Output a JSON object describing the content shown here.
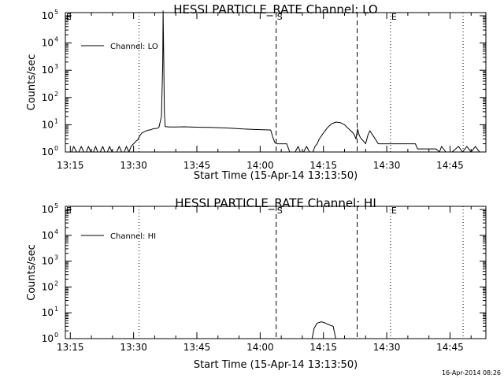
{
  "footer_timestamp": "16-Apr-2014 08:26",
  "chart_data": [
    {
      "type": "line",
      "title": "HESSI PARTICLE_RATE Channel: LO",
      "xlabel": "Start Time (15-Apr-14 13:13:50)",
      "ylabel": "Counts/sec",
      "y_scale": "log",
      "ylim": [
        1,
        100000
      ],
      "y_ticks": [
        {
          "base": "10",
          "exp": "0"
        },
        {
          "base": "10",
          "exp": "1"
        },
        {
          "base": "10",
          "exp": "2"
        },
        {
          "base": "10",
          "exp": "3"
        },
        {
          "base": "10",
          "exp": "4"
        },
        {
          "base": "10",
          "exp": "5"
        }
      ],
      "x_ticks": [
        "13:15",
        "13:30",
        "13:45",
        "14:00",
        "14:15",
        "14:30",
        "14:45"
      ],
      "xlim_minutes": [
        793.83,
        893.5
      ],
      "legend": {
        "label": "Channel: LO",
        "position": "top-left"
      },
      "markers": [
        {
          "label": "E",
          "style": "dotted",
          "minutes": 793.83
        },
        {
          "label": "",
          "style": "dotted",
          "minutes": 811.3
        },
        {
          "label": "S",
          "style": "dashed",
          "minutes": 843.8
        },
        {
          "label": "",
          "style": "dashed",
          "minutes": 863.0
        },
        {
          "label": "E",
          "style": "dotted",
          "minutes": 870.9
        },
        {
          "label": "",
          "style": "dotted",
          "minutes": 888.1
        }
      ],
      "series": [
        {
          "name": "Channel: LO",
          "minutes": [
            794,
            795.3,
            795.8,
            796.5,
            797,
            797.6,
            798.2,
            798.8,
            799.3,
            799.9,
            800.5,
            801,
            801.5,
            802.1,
            802.7,
            803.2,
            803.8,
            804.3,
            804.9,
            805.5,
            806,
            806.6,
            807.2,
            807.8,
            808.3,
            808.9,
            809.4,
            810,
            810.6,
            811,
            811.5,
            812,
            812.5,
            813,
            813.6,
            814,
            814.5,
            815,
            815.5,
            816,
            816.6,
            816.9,
            817,
            817.15,
            817.3,
            817.5,
            818,
            818.5,
            820,
            822,
            824,
            826,
            828,
            830,
            832,
            834,
            836,
            838,
            840,
            841.5,
            842.5,
            843,
            843.5,
            844,
            845,
            846.3,
            847,
            847.8,
            848.3,
            849,
            849.5,
            850.3,
            851,
            851.7,
            852.5,
            853,
            853.5,
            854,
            855,
            856,
            857,
            858,
            859,
            860,
            861,
            862,
            862.4,
            862.7,
            863.1,
            863.5,
            864,
            864.5,
            865,
            865.5,
            866,
            867,
            868,
            869,
            870.3,
            870.8,
            872,
            873,
            874,
            875,
            876.2,
            876.8,
            877.3,
            878,
            878.8,
            879.5,
            880.2,
            881,
            881.7,
            882.5,
            883,
            884,
            885.5,
            887,
            888,
            889,
            890,
            891,
            892,
            893.5
          ],
          "values": [
            1,
            1,
            1.6,
            1,
            1,
            1.6,
            1,
            1,
            1.6,
            1,
            1,
            1.6,
            1,
            1,
            1.6,
            1,
            1,
            1.6,
            1,
            1,
            1,
            1.6,
            1,
            1,
            1.6,
            1,
            1.6,
            2,
            2.5,
            2.8,
            4,
            5,
            5.5,
            6,
            6.4,
            6.5,
            7,
            7.2,
            7.3,
            8,
            20,
            1500,
            150000,
            3000,
            30,
            8.5,
            8.4,
            8.3,
            8.3,
            8.4,
            8.2,
            8.1,
            8,
            7.8,
            7.6,
            7.3,
            7,
            6.8,
            6.6,
            6.5,
            6.4,
            3.5,
            2.2,
            2,
            2,
            2,
            1,
            1,
            1,
            1.6,
            1,
            1,
            1.6,
            1,
            1,
            1.6,
            2,
            3,
            5,
            8,
            11,
            12.5,
            12,
            10,
            7,
            5,
            4,
            3,
            7,
            4,
            3,
            2.5,
            2,
            4,
            6,
            3.5,
            2,
            2,
            2,
            2,
            2,
            2,
            2,
            2,
            2,
            2,
            1.3,
            1.3,
            1.3,
            1.3,
            1.3,
            1.3,
            1.3,
            1,
            1.6,
            1,
            1,
            1.6,
            1,
            1.6,
            1,
            1.6,
            1,
            1,
            1.6,
            1
          ]
        }
      ]
    },
    {
      "type": "line",
      "title": "HESSI PARTICLE_RATE Channel: HI",
      "xlabel": "Start Time (15-Apr-14 13:13:50)",
      "ylabel": "Counts/sec",
      "y_scale": "log",
      "ylim": [
        1,
        100000
      ],
      "y_ticks": [
        {
          "base": "10",
          "exp": "0"
        },
        {
          "base": "10",
          "exp": "1"
        },
        {
          "base": "10",
          "exp": "2"
        },
        {
          "base": "10",
          "exp": "3"
        },
        {
          "base": "10",
          "exp": "4"
        },
        {
          "base": "10",
          "exp": "5"
        }
      ],
      "x_ticks": [
        "13:15",
        "13:30",
        "13:45",
        "14:00",
        "14:15",
        "14:30",
        "14:45"
      ],
      "xlim_minutes": [
        793.83,
        893.5
      ],
      "legend": {
        "label": "Channel: HI",
        "position": "top-left"
      },
      "markers": [
        {
          "label": "E",
          "style": "dotted",
          "minutes": 793.83
        },
        {
          "label": "",
          "style": "dotted",
          "minutes": 811.3
        },
        {
          "label": "S",
          "style": "dashed",
          "minutes": 843.8
        },
        {
          "label": "",
          "style": "dashed",
          "minutes": 863.0
        },
        {
          "label": "E",
          "style": "dotted",
          "minutes": 870.9
        },
        {
          "label": "",
          "style": "dotted",
          "minutes": 888.1
        }
      ],
      "series": [
        {
          "name": "Channel: HI",
          "minutes": [
            852.3,
            852.8,
            853.5,
            854.5,
            855.5,
            856.2,
            856.8,
            857.3,
            857.9
          ],
          "values": [
            1,
            2.5,
            4,
            4.5,
            4,
            3.5,
            3.2,
            3,
            1
          ]
        }
      ]
    }
  ]
}
